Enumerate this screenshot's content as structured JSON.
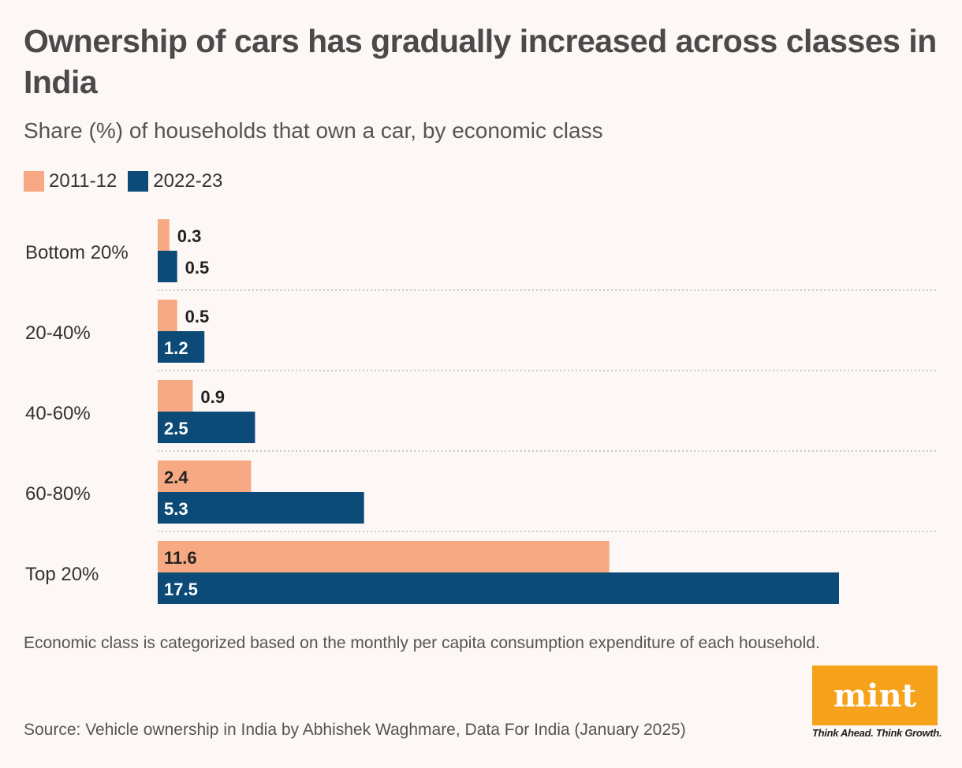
{
  "title": "Ownership of cars has gradually increased across classes in India",
  "subtitle": "Share (%) of households that own a car, by economic class",
  "note": "Economic class is categorized based on the monthly per capita consumption expenditure of each household.",
  "source": "Source: Vehicle ownership in India by Abhishek Waghmare, Data For India (January 2025)",
  "logo": {
    "text": "mint",
    "tagline": "Think Ahead. Think Growth.",
    "color": "#f7a21b"
  },
  "chart_data": {
    "type": "bar",
    "orientation": "horizontal",
    "categories": [
      "Bottom 20%",
      "20-40%",
      "40-60%",
      "60-80%",
      "Top 20%"
    ],
    "series": [
      {
        "name": "2011-12",
        "color": "#f6a983",
        "values": [
          0.3,
          0.5,
          0.9,
          2.4,
          11.6
        ]
      },
      {
        "name": "2022-23",
        "color": "#0c4a78",
        "values": [
          0.5,
          1.2,
          2.5,
          5.3,
          17.5
        ]
      }
    ],
    "legend": "top-left",
    "grid": false,
    "data_labels": true
  }
}
